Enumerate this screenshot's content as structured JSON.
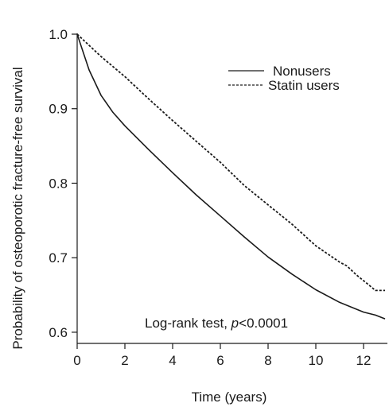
{
  "chart_data": {
    "type": "line",
    "title": "",
    "xlabel": "Time (years)",
    "ylabel": "Probability of osteoporotic fracture-free survival",
    "xlim": [
      0,
      13
    ],
    "ylim": [
      0.585,
      1.0
    ],
    "xticks": [
      0,
      2,
      4,
      6,
      8,
      10,
      12
    ],
    "yticks": [
      0.6,
      0.7,
      0.8,
      0.9,
      1.0
    ],
    "xtick_labels": [
      "0",
      "2",
      "4",
      "6",
      "8",
      "10",
      "12"
    ],
    "ytick_labels": [
      "0.6",
      "0.7",
      "0.8",
      "0.9",
      "1.0"
    ],
    "grid": false,
    "legend_position": "top-right",
    "annotation": {
      "prefix": "Log-rank test, ",
      "italic": "p",
      "suffix": "<0.0001"
    },
    "series": [
      {
        "name": "Nonusers",
        "line_style": "solid",
        "color": "#1a1a1a",
        "x": [
          0,
          0.5,
          1,
          1.5,
          2,
          3,
          4,
          5,
          6,
          7,
          8,
          9,
          10,
          11,
          12,
          12.5,
          12.9
        ],
        "y": [
          1.0,
          0.952,
          0.918,
          0.895,
          0.877,
          0.845,
          0.814,
          0.784,
          0.756,
          0.728,
          0.701,
          0.678,
          0.657,
          0.64,
          0.627,
          0.623,
          0.618
        ]
      },
      {
        "name": "Statin users",
        "line_style": "dashed",
        "color": "#1a1a1a",
        "x": [
          0,
          1,
          2,
          3,
          4,
          5,
          6,
          7,
          8,
          9,
          10,
          11,
          11.3,
          11.7,
          12.2,
          12.5,
          12.9
        ],
        "y": [
          1.0,
          0.97,
          0.943,
          0.913,
          0.884,
          0.856,
          0.828,
          0.797,
          0.771,
          0.745,
          0.716,
          0.694,
          0.689,
          0.677,
          0.664,
          0.656,
          0.656
        ]
      }
    ]
  }
}
